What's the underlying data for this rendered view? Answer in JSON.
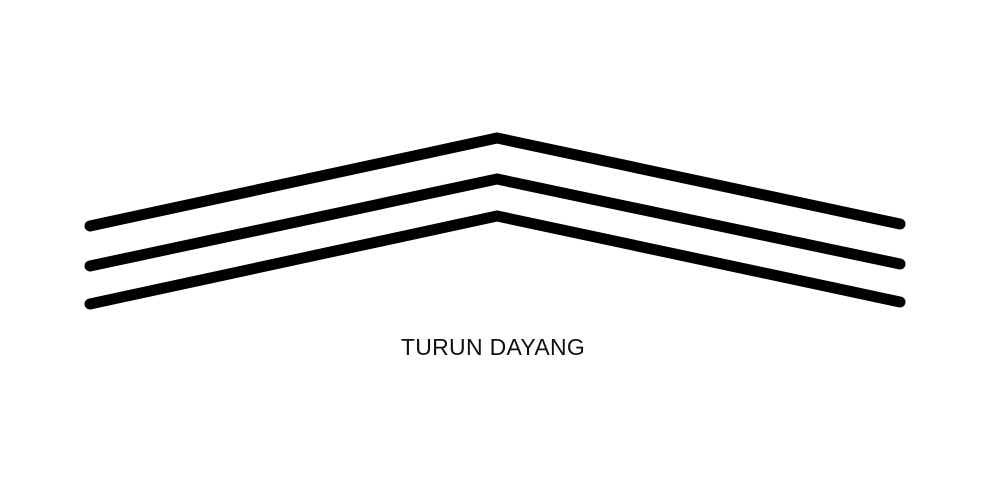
{
  "caption": "TURUN DAYANG",
  "colors": {
    "background": "#ffffff",
    "stroke": "#000000",
    "text": "#111111"
  }
}
